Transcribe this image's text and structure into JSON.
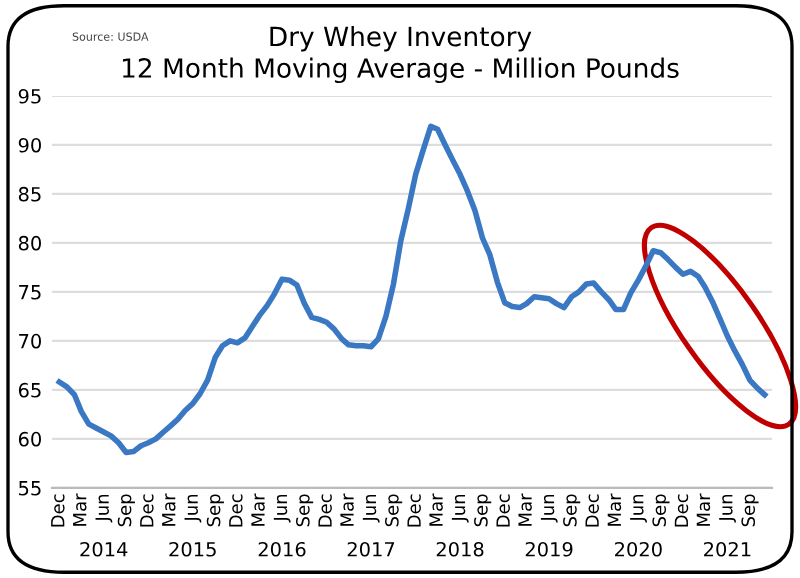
{
  "chart_data": {
    "type": "line",
    "title": "Dry Whey Inventory\n12 Month Moving Average - Million Pounds",
    "annotations": [
      "Source: USDA"
    ],
    "x": [
      "2013-12",
      "2014-01",
      "2014-02",
      "2014-03",
      "2014-04",
      "2014-05",
      "2014-06",
      "2014-07",
      "2014-08",
      "2014-09",
      "2014-10",
      "2014-11",
      "2014-12",
      "2015-01",
      "2015-02",
      "2015-03",
      "2015-04",
      "2015-05",
      "2015-06",
      "2015-07",
      "2015-08",
      "2015-09",
      "2015-10",
      "2015-11",
      "2015-12",
      "2016-01",
      "2016-02",
      "2016-03",
      "2016-04",
      "2016-05",
      "2016-06",
      "2016-07",
      "2016-08",
      "2016-09",
      "2016-10",
      "2016-11",
      "2016-12",
      "2017-01",
      "2017-02",
      "2017-03",
      "2017-04",
      "2017-05",
      "2017-06",
      "2017-07",
      "2017-08",
      "2017-09",
      "2017-10",
      "2017-11",
      "2017-12",
      "2018-01",
      "2018-02",
      "2018-03",
      "2018-04",
      "2018-05",
      "2018-06",
      "2018-07",
      "2018-08",
      "2018-09",
      "2018-10",
      "2018-11",
      "2018-12",
      "2019-01",
      "2019-02",
      "2019-03",
      "2019-04",
      "2019-05",
      "2019-06",
      "2019-07",
      "2019-08",
      "2019-09",
      "2019-10",
      "2019-11",
      "2019-12",
      "2020-01",
      "2020-02",
      "2020-03",
      "2020-04",
      "2020-05",
      "2020-06",
      "2020-07",
      "2020-08",
      "2020-09",
      "2020-10",
      "2020-11",
      "2020-12",
      "2021-01",
      "2021-02",
      "2021-03",
      "2021-04",
      "2021-05",
      "2021-06",
      "2021-07",
      "2021-08",
      "2021-09",
      "2021-10",
      "2021-11"
    ],
    "series": [
      {
        "color": "#3a78c3",
        "values": [
          65.8,
          65.3,
          64.5,
          62.8,
          61.5,
          61.1,
          60.7,
          60.3,
          59.6,
          58.6,
          58.7,
          59.3,
          59.6,
          60.0,
          60.7,
          61.3,
          62.0,
          62.9,
          63.6,
          64.6,
          66.0,
          68.3,
          69.5,
          70.0,
          69.8,
          70.3,
          71.5,
          72.6,
          73.6,
          74.8,
          76.3,
          76.2,
          75.7,
          73.8,
          72.4,
          72.2,
          71.9,
          71.2,
          70.2,
          69.6,
          69.5,
          69.5,
          69.4,
          70.2,
          72.5,
          75.8,
          80.2,
          83.5,
          87.0,
          89.5,
          91.9,
          91.6,
          90.0,
          88.5,
          87.0,
          85.3,
          83.3,
          80.5,
          78.8,
          76.0,
          73.9,
          73.5,
          73.4,
          73.8,
          74.5,
          74.4,
          74.3,
          73.8,
          73.4,
          74.5,
          75.0,
          75.8,
          75.9,
          75.0,
          74.2,
          73.2,
          73.2,
          74.9,
          76.2,
          77.6,
          79.2,
          79.0,
          78.3,
          77.5,
          76.8,
          77.1,
          76.6,
          75.5,
          74.0,
          72.3,
          70.5,
          69.0,
          67.6,
          66.0,
          65.2,
          64.5
        ]
      }
    ],
    "xlim": [
      "2013-11",
      "2021-12"
    ],
    "xticks": [
      {
        "value": "2013-12",
        "label": "Dec"
      },
      {
        "value": "2014-03",
        "label": "Mar"
      },
      {
        "value": "2014-06",
        "label": "Jun"
      },
      {
        "value": "2014-09",
        "label": "Sep"
      },
      {
        "value": "2014-12",
        "label": "Dec"
      },
      {
        "value": "2015-03",
        "label": "Mar"
      },
      {
        "value": "2015-06",
        "label": "Jun"
      },
      {
        "value": "2015-09",
        "label": "Sep"
      },
      {
        "value": "2015-12",
        "label": "Dec"
      },
      {
        "value": "2016-03",
        "label": "Mar"
      },
      {
        "value": "2016-06",
        "label": "Jun"
      },
      {
        "value": "2016-09",
        "label": "Sep"
      },
      {
        "value": "2016-12",
        "label": "Dec"
      },
      {
        "value": "2017-03",
        "label": "Mar"
      },
      {
        "value": "2017-06",
        "label": "Jun"
      },
      {
        "value": "2017-09",
        "label": "Sep"
      },
      {
        "value": "2017-12",
        "label": "Dec"
      },
      {
        "value": "2018-03",
        "label": "Mar"
      },
      {
        "value": "2018-06",
        "label": "Jun"
      },
      {
        "value": "2018-09",
        "label": "Sep"
      },
      {
        "value": "2018-12",
        "label": "Dec"
      },
      {
        "value": "2019-03",
        "label": "Mar"
      },
      {
        "value": "2019-06",
        "label": "Jun"
      },
      {
        "value": "2019-09",
        "label": "Sep"
      },
      {
        "value": "2019-12",
        "label": "Dec"
      },
      {
        "value": "2020-03",
        "label": "Mar"
      },
      {
        "value": "2020-06",
        "label": "Jun"
      },
      {
        "value": "2020-09",
        "label": "Sep"
      },
      {
        "value": "2020-12",
        "label": "Dec"
      },
      {
        "value": "2021-03",
        "label": "Mar"
      },
      {
        "value": "2021-06",
        "label": "Jun"
      },
      {
        "value": "2021-09",
        "label": "Sep"
      }
    ],
    "x2lim": [
      "2013-11",
      "2021-12"
    ],
    "x2ticks": [
      {
        "value": "2014-06",
        "label": "2014"
      },
      {
        "value": "2015-06",
        "label": "2015"
      },
      {
        "value": "2016-06",
        "label": "2016"
      },
      {
        "value": "2017-06",
        "label": "2017"
      },
      {
        "value": "2018-06",
        "label": "2018"
      },
      {
        "value": "2019-06",
        "label": "2019"
      },
      {
        "value": "2020-06",
        "label": "2020"
      },
      {
        "value": "2021-06",
        "label": "2021"
      }
    ],
    "ylim": [
      55,
      95
    ],
    "yticks": [
      55,
      60,
      65,
      70,
      75,
      80,
      85,
      90,
      95
    ],
    "grid": "y",
    "marker": "none",
    "line_style": "solid"
  }
}
